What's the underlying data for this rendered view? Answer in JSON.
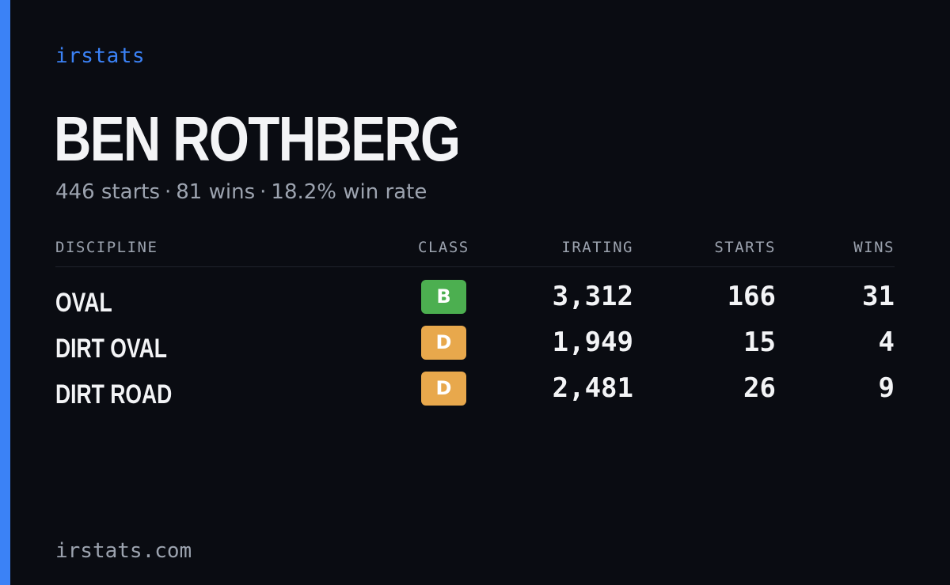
{
  "brand": "irstats",
  "driver": {
    "name": "BEN ROTHBERG"
  },
  "summary": {
    "starts": "446 starts",
    "wins": "81 wins",
    "win_rate": "18.2% win rate",
    "separator": "·"
  },
  "table": {
    "headers": {
      "discipline": "DISCIPLINE",
      "class": "CLASS",
      "irating": "IRATING",
      "starts": "STARTS",
      "wins": "WINS"
    },
    "rows": [
      {
        "discipline": "OVAL",
        "class": "B",
        "class_color": "#4caf50",
        "irating": "3,312",
        "starts": "166",
        "wins": "31"
      },
      {
        "discipline": "DIRT OVAL",
        "class": "D",
        "class_color": "#e8a84c",
        "irating": "1,949",
        "starts": "15",
        "wins": "4"
      },
      {
        "discipline": "DIRT ROAD",
        "class": "D",
        "class_color": "#e8a84c",
        "irating": "2,481",
        "starts": "26",
        "wins": "9"
      }
    ]
  },
  "footer": {
    "url": "irstats.com"
  },
  "colors": {
    "accent": "#3b82f6",
    "background": "#0a0c12"
  }
}
